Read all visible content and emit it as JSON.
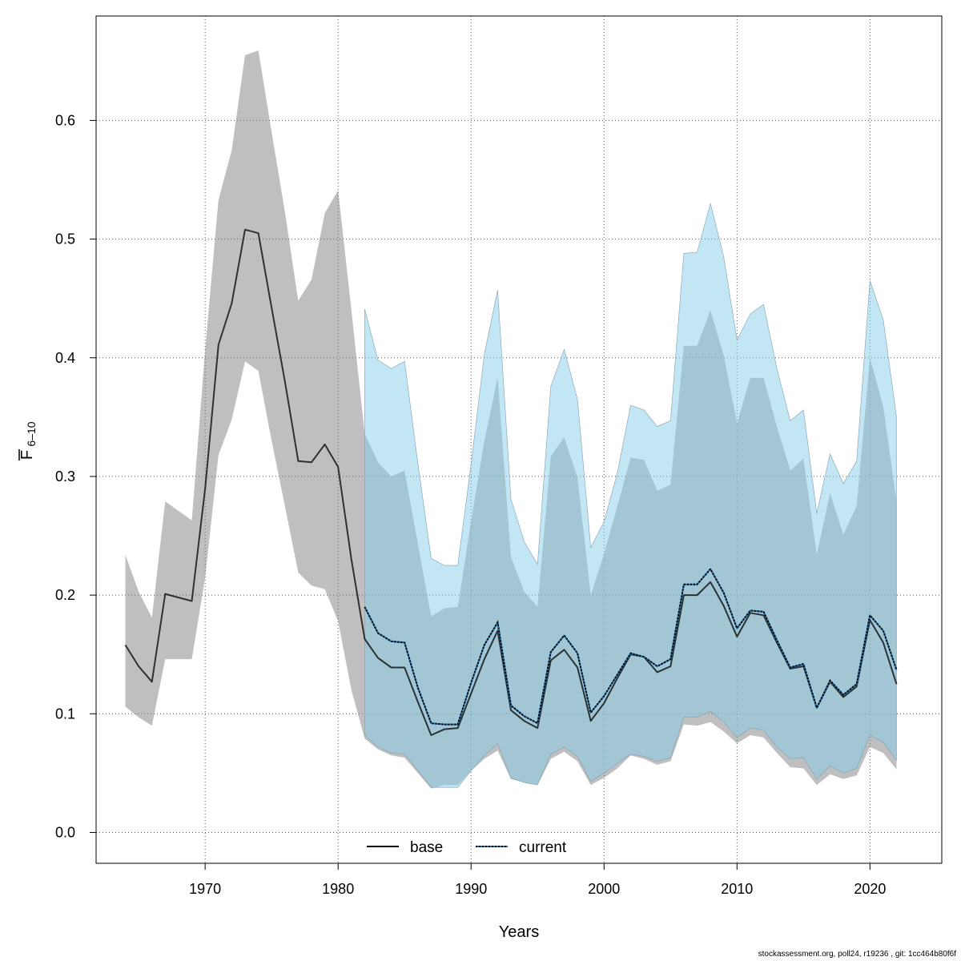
{
  "chart_data": {
    "type": "line",
    "xlabel": "Years",
    "ylabel": "F",
    "ylabel_sub": "6–10",
    "xlim": [
      1961.8,
      2025.4
    ],
    "ylim": [
      -0.026,
      0.688
    ],
    "xticks": [
      1970,
      1980,
      1990,
      2000,
      2010,
      2020
    ],
    "yticks": [
      0.0,
      0.1,
      0.2,
      0.3,
      0.4,
      0.5,
      0.6
    ],
    "grid": true,
    "legend_position": "bottom-center",
    "colors": {
      "base_band": "#7f7f7f",
      "base_line": "#000000",
      "current_band": "#87ceeb",
      "current_line": "#1a6fa8"
    },
    "series": [
      {
        "name": "base",
        "style": "solid",
        "x": [
          1964,
          1965,
          1966,
          1967,
          1968,
          1969,
          1970,
          1971,
          1972,
          1973,
          1974,
          1975,
          1976,
          1977,
          1978,
          1979,
          1980,
          1981,
          1982,
          1983,
          1984,
          1985,
          1986,
          1987,
          1988,
          1989,
          1990,
          1991,
          1992,
          1993,
          1994,
          1995,
          1996,
          1997,
          1998,
          1999,
          2000,
          2001,
          2002,
          2003,
          2004,
          2005,
          2006,
          2007,
          2008,
          2009,
          2010,
          2011,
          2012,
          2013,
          2014,
          2015,
          2016,
          2017,
          2018,
          2019,
          2020,
          2021,
          2022
        ],
        "y": [
          0.158,
          0.14,
          0.127,
          0.201,
          0.198,
          0.195,
          0.29,
          0.411,
          0.446,
          0.508,
          0.505,
          0.442,
          0.38,
          0.313,
          0.312,
          0.327,
          0.308,
          0.23,
          0.163,
          0.147,
          0.139,
          0.139,
          0.11,
          0.082,
          0.087,
          0.088,
          0.117,
          0.146,
          0.17,
          0.103,
          0.094,
          0.088,
          0.145,
          0.154,
          0.139,
          0.094,
          0.109,
          0.13,
          0.15,
          0.148,
          0.135,
          0.14,
          0.2,
          0.2,
          0.211,
          0.191,
          0.165,
          0.185,
          0.183,
          0.16,
          0.138,
          0.14,
          0.105,
          0.127,
          0.114,
          0.123,
          0.179,
          0.16,
          0.125
        ],
        "lower": [
          0.106,
          0.097,
          0.09,
          0.146,
          0.146,
          0.146,
          0.215,
          0.318,
          0.348,
          0.397,
          0.389,
          0.33,
          0.275,
          0.219,
          0.208,
          0.205,
          0.178,
          0.12,
          0.079,
          0.07,
          0.065,
          0.063,
          0.05,
          0.037,
          0.04,
          0.04,
          0.052,
          0.062,
          0.069,
          0.045,
          0.042,
          0.04,
          0.062,
          0.068,
          0.06,
          0.04,
          0.046,
          0.054,
          0.065,
          0.062,
          0.057,
          0.06,
          0.091,
          0.09,
          0.093,
          0.085,
          0.075,
          0.082,
          0.08,
          0.067,
          0.055,
          0.054,
          0.04,
          0.049,
          0.045,
          0.048,
          0.072,
          0.067,
          0.053
        ],
        "upper": [
          0.234,
          0.203,
          0.181,
          0.279,
          0.271,
          0.263,
          0.407,
          0.533,
          0.575,
          0.655,
          0.659,
          0.59,
          0.523,
          0.448,
          0.466,
          0.522,
          0.541,
          0.44,
          0.336,
          0.312,
          0.3,
          0.305,
          0.243,
          0.182,
          0.189,
          0.19,
          0.262,
          0.33,
          0.383,
          0.232,
          0.203,
          0.19,
          0.317,
          0.333,
          0.299,
          0.2,
          0.235,
          0.275,
          0.316,
          0.314,
          0.288,
          0.293,
          0.41,
          0.41,
          0.44,
          0.402,
          0.345,
          0.383,
          0.383,
          0.342,
          0.305,
          0.315,
          0.234,
          0.286,
          0.251,
          0.275,
          0.4,
          0.359,
          0.279
        ]
      },
      {
        "name": "current",
        "style": "dotted",
        "x": [
          1982,
          1983,
          1984,
          1985,
          1986,
          1987,
          1988,
          1989,
          1990,
          1991,
          1992,
          1993,
          1994,
          1995,
          1996,
          1997,
          1998,
          1999,
          2000,
          2001,
          2002,
          2003,
          2004,
          2005,
          2006,
          2007,
          2008,
          2009,
          2010,
          2011,
          2012,
          2013,
          2014,
          2015,
          2016,
          2017,
          2018,
          2019,
          2020,
          2021,
          2022
        ],
        "y": [
          0.19,
          0.168,
          0.161,
          0.16,
          0.122,
          0.092,
          0.091,
          0.091,
          0.126,
          0.158,
          0.177,
          0.107,
          0.098,
          0.092,
          0.152,
          0.166,
          0.151,
          0.101,
          0.115,
          0.133,
          0.151,
          0.148,
          0.14,
          0.146,
          0.209,
          0.209,
          0.222,
          0.202,
          0.172,
          0.187,
          0.186,
          0.162,
          0.139,
          0.142,
          0.105,
          0.128,
          0.116,
          0.125,
          0.183,
          0.17,
          0.137
        ],
        "lower": [
          0.082,
          0.072,
          0.067,
          0.066,
          0.052,
          0.038,
          0.038,
          0.038,
          0.052,
          0.065,
          0.075,
          0.046,
          0.042,
          0.04,
          0.066,
          0.072,
          0.064,
          0.043,
          0.05,
          0.058,
          0.066,
          0.064,
          0.06,
          0.063,
          0.097,
          0.097,
          0.102,
          0.093,
          0.08,
          0.088,
          0.086,
          0.072,
          0.062,
          0.063,
          0.045,
          0.056,
          0.05,
          0.054,
          0.082,
          0.076,
          0.061
        ],
        "upper": [
          0.441,
          0.398,
          0.391,
          0.397,
          0.311,
          0.231,
          0.225,
          0.225,
          0.31,
          0.403,
          0.457,
          0.281,
          0.245,
          0.226,
          0.376,
          0.407,
          0.365,
          0.24,
          0.262,
          0.303,
          0.36,
          0.356,
          0.342,
          0.347,
          0.488,
          0.489,
          0.53,
          0.485,
          0.415,
          0.437,
          0.445,
          0.391,
          0.347,
          0.356,
          0.269,
          0.319,
          0.294,
          0.313,
          0.465,
          0.432,
          0.35
        ]
      }
    ]
  },
  "footer_text": "stockassessment.org, poll24, r19236 , git: 1cc464b80f6f"
}
